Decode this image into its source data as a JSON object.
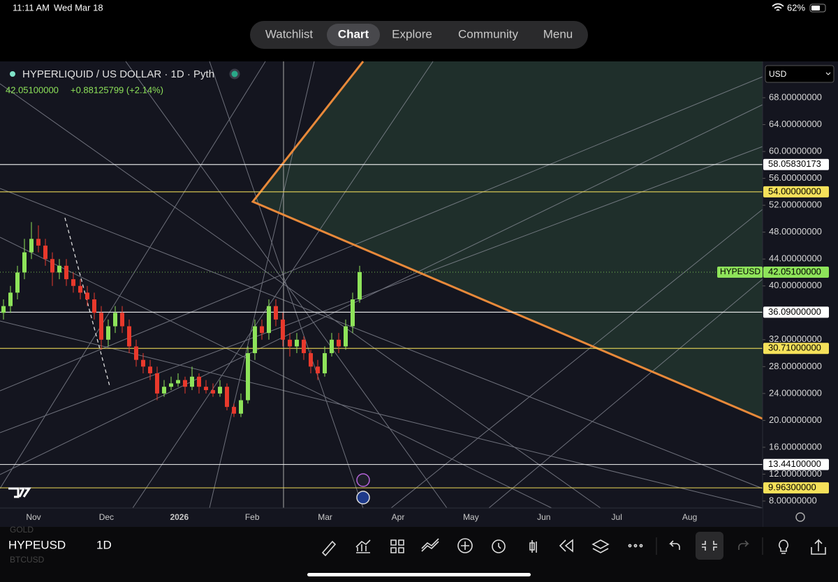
{
  "status_bar": {
    "time": "11:11 AM",
    "date": "Wed Mar 18",
    "battery": "62%"
  },
  "tabs": [
    "Watchlist",
    "Chart",
    "Explore",
    "Community",
    "Menu"
  ],
  "active_tab": 1,
  "currency": "USD",
  "symbol": "HYPEUSD",
  "interval": "1D",
  "other_symbols": [
    "GOLD",
    "BTCUSD"
  ],
  "chart_data": {
    "type": "candlestick",
    "title": "HYPERLIQUID / US DOLLAR · 1D · Pyth",
    "last_price": {
      "value": 42.051,
      "label": "42.05100000"
    },
    "change": "+0.88125799 (+2.14%)",
    "up_color": "#8ee35a",
    "down_color": "#e8392c",
    "categories": [
      "Nov",
      "Dec",
      "2026",
      "Feb",
      "Mar",
      "Apr",
      "May",
      "Jun",
      "Jul",
      "Aug"
    ],
    "ylim": [
      6.96,
      73.4
    ],
    "yticks": [
      {
        "value": 8,
        "label": "8.00000000"
      },
      {
        "value": 12,
        "label": "12.00000000"
      },
      {
        "value": 16,
        "label": "16.00000000"
      },
      {
        "value": 20,
        "label": "20.00000000"
      },
      {
        "value": 24,
        "label": "24.00000000"
      },
      {
        "value": 28,
        "label": "28.00000000"
      },
      {
        "value": 32,
        "label": "32.00000000"
      },
      {
        "value": 36,
        "label": "36.00000000"
      },
      {
        "value": 40,
        "label": "40.00000000"
      },
      {
        "value": 44,
        "label": "44.00000000"
      },
      {
        "value": 48,
        "label": "48.00000000"
      },
      {
        "value": 52,
        "label": "52.00000000"
      },
      {
        "value": 56,
        "label": "56.00000000"
      },
      {
        "value": 60,
        "label": "60.00000000"
      },
      {
        "value": 64,
        "label": "64.00000000"
      },
      {
        "value": 68,
        "label": "68.00000000"
      }
    ],
    "levels": [
      {
        "value": 58.05830173,
        "color": "#ffffff"
      },
      {
        "value": 54,
        "label": "54.00000000",
        "color": "#f5e15a"
      },
      {
        "value": 36.09,
        "label": "36.09000000",
        "color": "#ffffff"
      },
      {
        "value": 30.71,
        "label": "30.71000000",
        "color": "#f5e15a"
      },
      {
        "value": 13.441,
        "label": "13.44100000",
        "color": "#ffffff"
      },
      {
        "value": 9.963,
        "label": "9.96300000",
        "color": "#f5e15a"
      }
    ],
    "candles": [
      [
        36,
        38,
        35,
        37
      ],
      [
        37,
        40,
        36,
        39
      ],
      [
        39,
        43,
        38,
        42
      ],
      [
        42,
        47,
        41,
        45
      ],
      [
        45,
        49.5,
        44,
        47
      ],
      [
        47,
        49,
        45,
        46
      ],
      [
        46,
        47,
        43,
        44
      ],
      [
        44,
        45,
        40,
        42
      ],
      [
        42,
        44,
        41,
        43
      ],
      [
        43,
        44,
        40,
        41
      ],
      [
        41,
        42,
        39,
        40
      ],
      [
        40,
        41,
        38,
        39
      ],
      [
        39,
        40,
        37,
        38
      ],
      [
        38,
        39,
        35,
        36
      ],
      [
        36,
        37,
        30.5,
        32
      ],
      [
        32,
        35,
        31,
        34
      ],
      [
        34,
        37,
        33,
        36
      ],
      [
        36,
        37,
        33,
        34
      ],
      [
        34,
        35,
        30,
        31
      ],
      [
        31,
        32,
        28,
        29
      ],
      [
        29,
        30,
        27,
        28
      ],
      [
        28,
        29,
        26,
        27
      ],
      [
        27,
        28,
        23,
        24
      ],
      [
        24,
        26,
        23.5,
        25
      ],
      [
        25,
        26.5,
        24.5,
        25.5
      ],
      [
        25.5,
        27,
        25,
        26
      ],
      [
        26,
        26.5,
        24,
        25
      ],
      [
        25,
        28,
        24.5,
        26.5
      ],
      [
        26.5,
        27,
        24,
        25
      ],
      [
        25,
        26,
        24,
        24.5
      ],
      [
        24.5,
        25.5,
        23.5,
        24
      ],
      [
        24,
        26,
        23.5,
        25
      ],
      [
        25,
        25.5,
        21.5,
        22
      ],
      [
        22,
        22.5,
        20.5,
        21
      ],
      [
        21,
        24,
        20.5,
        23
      ],
      [
        23,
        31,
        22.5,
        30
      ],
      [
        30,
        35,
        29,
        34
      ],
      [
        34,
        35,
        32,
        33
      ],
      [
        33,
        38,
        32,
        37
      ],
      [
        37,
        38,
        34,
        35
      ],
      [
        35,
        36,
        31,
        32
      ],
      [
        32,
        33,
        29.5,
        31
      ],
      [
        31,
        33,
        30,
        32
      ],
      [
        32,
        32.5,
        29,
        30
      ],
      [
        30,
        30.5,
        27,
        28
      ],
      [
        28,
        29,
        26,
        27
      ],
      [
        27,
        31,
        26.5,
        30
      ],
      [
        30,
        33,
        29.5,
        32
      ],
      [
        32,
        33,
        30,
        31
      ],
      [
        31,
        35,
        30.5,
        34
      ],
      [
        34,
        39,
        33,
        38
      ],
      [
        38,
        43,
        37.5,
        42.051
      ]
    ]
  }
}
